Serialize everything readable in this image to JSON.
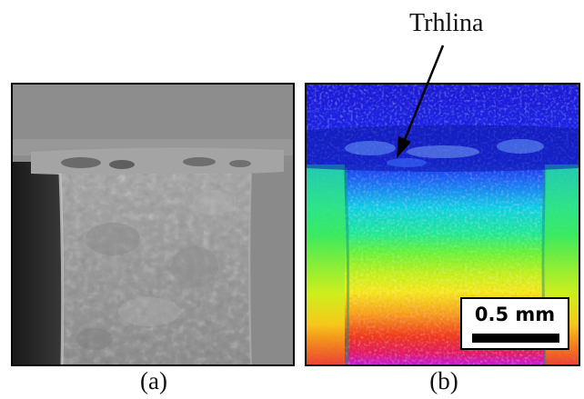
{
  "annotation": {
    "label": "Trhlina"
  },
  "panels": [
    {
      "caption": "(a)"
    },
    {
      "caption": "(b)"
    }
  ],
  "scale_bar": {
    "label": "0.5 mm"
  }
}
